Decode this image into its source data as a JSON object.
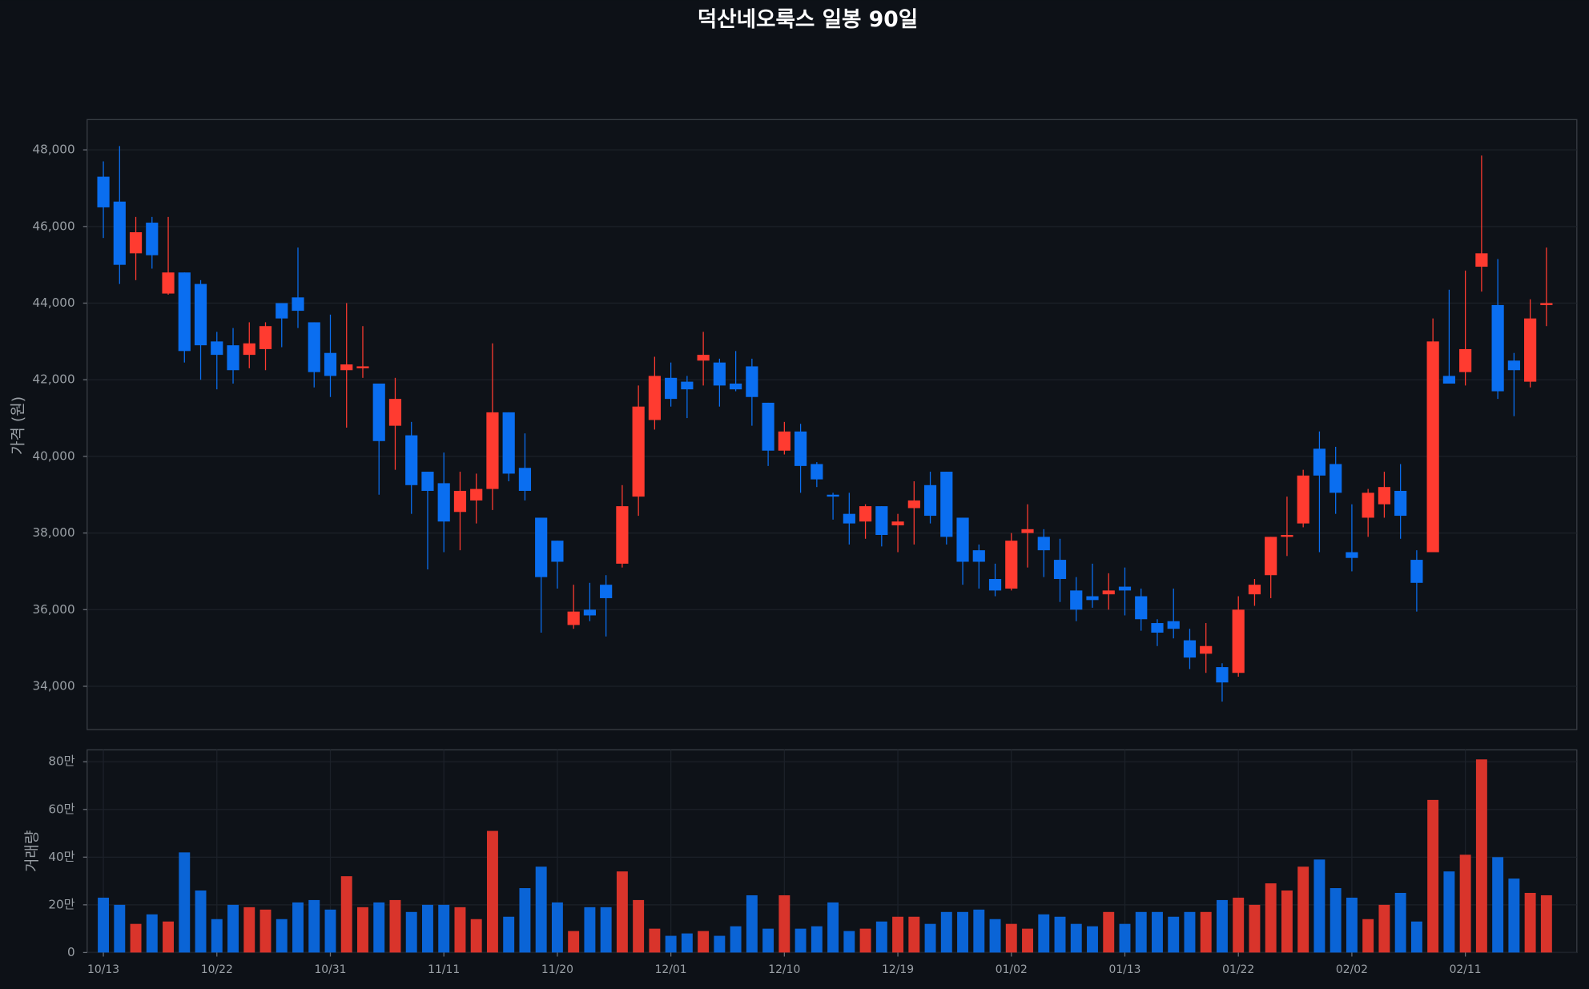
{
  "title": "덕산네오룩스 일봉 90일",
  "chart_data": [
    {
      "type": "candlestick",
      "y_label": "가격 (원)",
      "up_color": "#ff3b30",
      "down_color": "#0a6ef0",
      "open": [
        47300,
        46650,
        45300,
        46100,
        44250,
        44800,
        44500,
        43000,
        42900,
        42650,
        42800,
        44000,
        44150,
        43500,
        42700,
        42250,
        42300,
        41900,
        40800,
        40550,
        39600,
        39300,
        38550,
        38850,
        39150,
        41150,
        39700,
        38400,
        37800,
        35600,
        36000,
        36650,
        37200,
        38950,
        40950,
        42050,
        41950,
        42500,
        42450,
        41900,
        42350,
        41400,
        40150,
        40650,
        39800,
        39000,
        38500,
        38300,
        38700,
        38200,
        38650,
        39250,
        39600,
        38400,
        37550,
        36800,
        36550,
        38000,
        37900,
        37300,
        36500,
        36350,
        36400,
        36600,
        36350,
        35650,
        35700,
        35200,
        34850,
        34500,
        34350,
        36400,
        36900,
        37900,
        38250,
        40200,
        39800,
        37500,
        38400,
        38750,
        39100,
        37300,
        37500,
        42100,
        42200,
        44950,
        43950,
        42500,
        41950,
        43950
      ],
      "high": [
        47700,
        48100,
        46250,
        46250,
        46250,
        44800,
        44600,
        43250,
        43350,
        43500,
        43500,
        44000,
        45450,
        43500,
        43700,
        44000,
        43400,
        41900,
        42050,
        40900,
        39600,
        40100,
        39600,
        39550,
        42950,
        41150,
        40600,
        38400,
        37800,
        36650,
        36700,
        36900,
        39250,
        41850,
        42600,
        42450,
        42100,
        43250,
        42550,
        42750,
        42550,
        41400,
        40900,
        40850,
        39850,
        39050,
        39050,
        38750,
        38700,
        38500,
        39350,
        39600,
        39600,
        38400,
        37700,
        37200,
        38000,
        38750,
        38100,
        37850,
        36850,
        37200,
        36950,
        37100,
        36550,
        35750,
        36550,
        35500,
        35650,
        34600,
        36350,
        36800,
        37900,
        38950,
        39650,
        40650,
        40250,
        38750,
        39150,
        39600,
        39800,
        37550,
        43600,
        44350,
        44850,
        47850,
        45150,
        42700,
        44100,
        45450
      ],
      "low": [
        45700,
        44500,
        44600,
        44900,
        44220,
        42450,
        42000,
        41750,
        41900,
        42300,
        42250,
        42850,
        43350,
        41800,
        41550,
        40750,
        42050,
        39000,
        39650,
        38500,
        37050,
        37500,
        37550,
        38250,
        38600,
        39350,
        38850,
        35400,
        36550,
        35500,
        35700,
        35300,
        37100,
        38450,
        40700,
        41300,
        41000,
        41850,
        41300,
        41700,
        40800,
        39750,
        40050,
        39050,
        39200,
        38350,
        37700,
        37850,
        37650,
        37500,
        37700,
        38250,
        37700,
        36650,
        36550,
        36350,
        36500,
        37100,
        36850,
        36200,
        35700,
        36050,
        36000,
        35850,
        35450,
        35050,
        35250,
        34450,
        34350,
        33600,
        34250,
        36100,
        36300,
        37400,
        38150,
        37500,
        38500,
        37000,
        37900,
        38400,
        37850,
        35950,
        37500,
        41900,
        41850,
        44300,
        41500,
        41050,
        41800,
        43400
      ],
      "close": [
        46500,
        45000,
        45850,
        45250,
        44800,
        42750,
        42900,
        42650,
        42250,
        42950,
        43400,
        43600,
        43800,
        42200,
        42100,
        42400,
        42350,
        40400,
        41500,
        39250,
        39100,
        38300,
        39100,
        39150,
        41150,
        39550,
        39100,
        36850,
        37250,
        35950,
        35850,
        36300,
        38700,
        41300,
        42100,
        41500,
        41750,
        42650,
        41850,
        41750,
        41550,
        40150,
        40650,
        39750,
        39400,
        38950,
        38250,
        38700,
        37950,
        38300,
        38850,
        38450,
        37900,
        37250,
        37250,
        36500,
        37800,
        38100,
        37550,
        36800,
        36000,
        36250,
        36500,
        36500,
        35750,
        35400,
        35500,
        34750,
        35050,
        34100,
        36000,
        36650,
        37900,
        37950,
        39500,
        39500,
        39050,
        37350,
        39050,
        39200,
        38450,
        36700,
        43000,
        41900,
        42800,
        45300,
        41700,
        42250,
        43600,
        44000
      ],
      "ylim": [
        32870,
        48790
      ],
      "yticks": [
        {
          "value": 34000,
          "label": "34,000"
        },
        {
          "value": 36000,
          "label": "36,000"
        },
        {
          "value": 38000,
          "label": "38,000"
        },
        {
          "value": 40000,
          "label": "40,000"
        },
        {
          "value": 42000,
          "label": "42,000"
        },
        {
          "value": 44000,
          "label": "44,000"
        },
        {
          "value": 46000,
          "label": "46,000"
        },
        {
          "value": 48000,
          "label": "48,000"
        }
      ],
      "grid": true
    },
    {
      "type": "bar",
      "y_label": "거래량",
      "up_color": "#d9342b",
      "down_color": "#0a64d6",
      "categories": [
        "10/13",
        null,
        null,
        null,
        null,
        null,
        null,
        "10/22",
        null,
        null,
        null,
        null,
        null,
        null,
        "10/31",
        null,
        null,
        null,
        null,
        null,
        null,
        "11/11",
        null,
        null,
        null,
        null,
        null,
        null,
        "11/20",
        null,
        null,
        null,
        null,
        null,
        null,
        "12/01",
        null,
        null,
        null,
        null,
        null,
        null,
        "12/10",
        null,
        null,
        null,
        null,
        null,
        null,
        "12/19",
        null,
        null,
        null,
        null,
        null,
        null,
        "01/02",
        null,
        null,
        null,
        null,
        null,
        null,
        "01/13",
        null,
        null,
        null,
        null,
        null,
        null,
        "01/22",
        null,
        null,
        null,
        null,
        null,
        null,
        "02/02",
        null,
        null,
        null,
        null,
        null,
        null,
        "02/11",
        null,
        null,
        null,
        null,
        null
      ],
      "values": [
        230000,
        200000,
        120000,
        160000,
        130000,
        420000,
        260000,
        140000,
        200000,
        190000,
        180000,
        140000,
        210000,
        220000,
        180000,
        320000,
        190000,
        210000,
        220000,
        170000,
        200000,
        200000,
        190000,
        140000,
        510000,
        150000,
        270000,
        360000,
        210000,
        90000,
        190000,
        190000,
        340000,
        220000,
        100000,
        70000,
        80000,
        90000,
        70000,
        110000,
        240000,
        100000,
        240000,
        100000,
        110000,
        210000,
        90000,
        100000,
        130000,
        150000,
        150000,
        120000,
        170000,
        170000,
        180000,
        140000,
        120000,
        100000,
        160000,
        150000,
        120000,
        110000,
        170000,
        120000,
        170000,
        170000,
        150000,
        170000,
        170000,
        220000,
        230000,
        200000,
        290000,
        260000,
        360000,
        390000,
        270000,
        230000,
        140000,
        200000,
        250000,
        130000,
        640000,
        340000,
        410000,
        810000,
        400000,
        310000,
        250000,
        240000
      ],
      "ylim": [
        0,
        850000
      ],
      "yticks": [
        0,
        {
          "value": 200000,
          "label": "20만"
        },
        {
          "value": 400000,
          "label": "40만"
        },
        {
          "value": 600000,
          "label": "60만"
        },
        {
          "value": 800000,
          "label": "80만"
        }
      ],
      "grid": true
    }
  ]
}
